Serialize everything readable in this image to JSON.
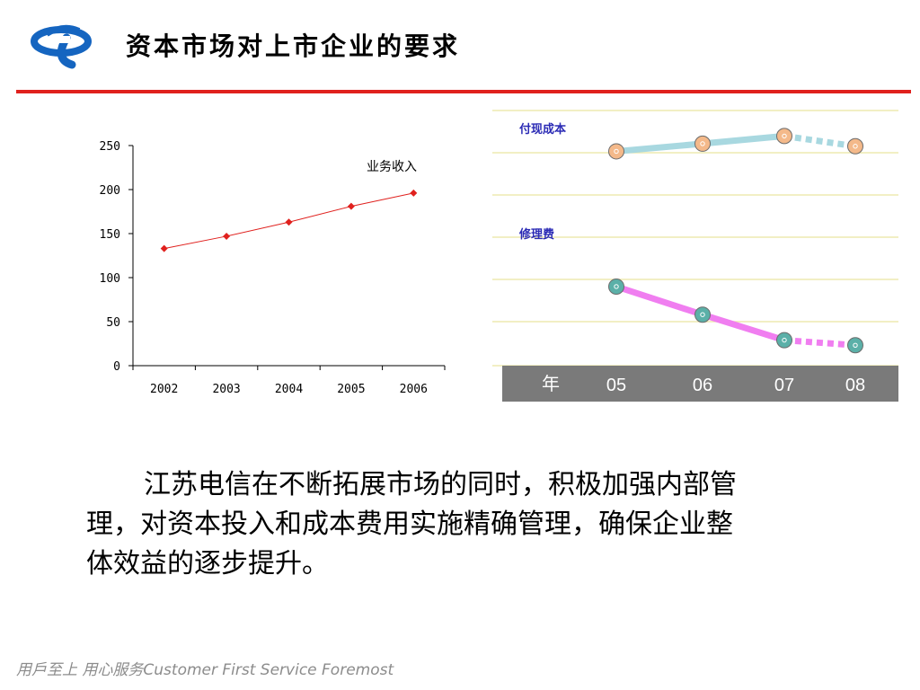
{
  "header": {
    "title": "资本市场对上市企业的要求",
    "logo": "china-telecom-logo",
    "accent": "#e0211e",
    "logo_color": "#1565c0"
  },
  "chart_data": [
    {
      "type": "line",
      "categories": [
        "2002",
        "2003",
        "2004",
        "2005",
        "2006"
      ],
      "series": [
        {
          "name": "业务收入",
          "values": [
            133,
            147,
            163,
            181,
            196
          ],
          "color": "#e0211e"
        }
      ],
      "yticks": [
        "0",
        "50",
        "100",
        "150",
        "200",
        "250"
      ],
      "ylim": [
        0,
        250
      ],
      "grid": false,
      "legend": "top-right"
    },
    {
      "type": "line",
      "categories": [
        "05",
        "06",
        "07",
        "08"
      ],
      "x_axis_label": "年",
      "series": [
        {
          "name": "付现成本",
          "values": [
            0.84,
            0.87,
            0.9,
            0.86
          ],
          "projected_from": "07",
          "line_color": "#a8d8e0",
          "marker_color": "#f4b98a"
        },
        {
          "name": "修理费",
          "values": [
            0.31,
            0.2,
            0.1,
            0.08
          ],
          "projected_from": "07",
          "line_color": "#f07ef0",
          "marker_color": "#5bb0a8"
        }
      ],
      "grid": true,
      "axis_band_color": "#7a7a7a"
    }
  ],
  "body": {
    "line1": "江苏电信在不断拓展市场的同时，积极加强内部管",
    "line2": "理，对资本投入和成本费用实施精确管理，确保企业整",
    "line3": "体效益的逐步提升。"
  },
  "footer": {
    "slogan": "用戶至上 用心服务Customer First Service Foremost"
  }
}
